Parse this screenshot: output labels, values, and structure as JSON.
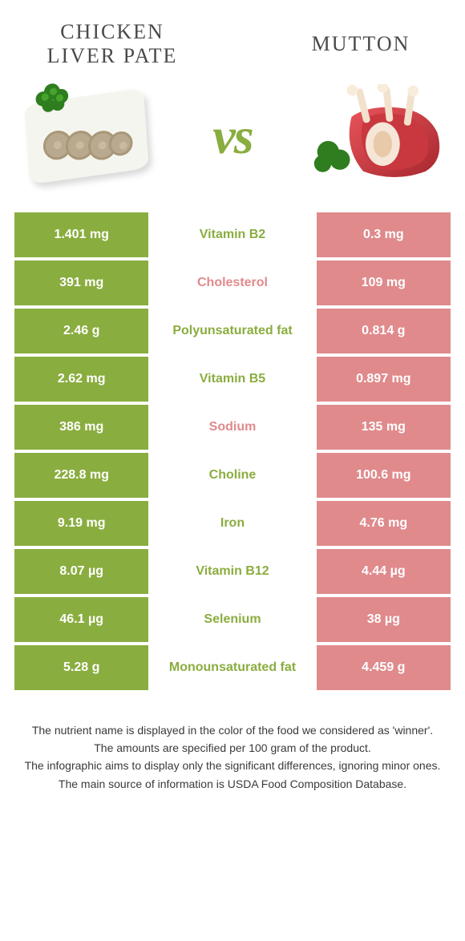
{
  "colors": {
    "winner_left": "#8aad3f",
    "loser_right": "#e08a8c",
    "text_dark": "#4a4a4a",
    "vs": "#8aad3f"
  },
  "header": {
    "left_title": "Chicken liver pate",
    "right_title": "Mutton",
    "vs_label": "vs"
  },
  "rows": [
    {
      "left": "1.401 mg",
      "label": "Vitamin B2",
      "right": "0.3 mg",
      "winner": "left"
    },
    {
      "left": "391 mg",
      "label": "Cholesterol",
      "right": "109 mg",
      "winner": "right"
    },
    {
      "left": "2.46 g",
      "label": "Polyunsaturated fat",
      "right": "0.814 g",
      "winner": "left"
    },
    {
      "left": "2.62 mg",
      "label": "Vitamin B5",
      "right": "0.897 mg",
      "winner": "left"
    },
    {
      "left": "386 mg",
      "label": "Sodium",
      "right": "135 mg",
      "winner": "right"
    },
    {
      "left": "228.8 mg",
      "label": "Choline",
      "right": "100.6 mg",
      "winner": "left"
    },
    {
      "left": "9.19 mg",
      "label": "Iron",
      "right": "4.76 mg",
      "winner": "left"
    },
    {
      "left": "8.07 µg",
      "label": "Vitamin B12",
      "right": "4.44 µg",
      "winner": "left"
    },
    {
      "left": "46.1 µg",
      "label": "Selenium",
      "right": "38 µg",
      "winner": "left"
    },
    {
      "left": "5.28 g",
      "label": "Monounsaturated fat",
      "right": "4.459 g",
      "winner": "left"
    }
  ],
  "footnotes": [
    "The nutrient name is displayed in the color of the food we considered as 'winner'.",
    "The amounts are specified per 100 gram of the product.",
    "The infographic aims to display only the significant differences, ignoring minor ones.",
    "The main source of information is USDA Food Composition Database."
  ]
}
